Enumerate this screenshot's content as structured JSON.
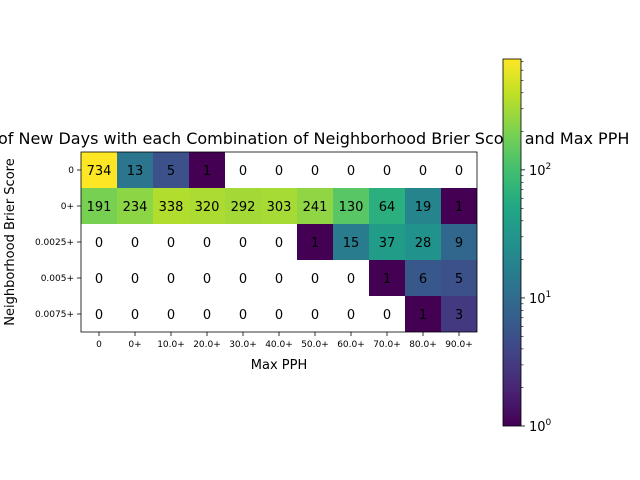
{
  "chart_data": {
    "type": "heatmap",
    "title": "Number of New Days with each Combination of Neighborhood Brier Score and Max PPH",
    "xlabel": "Max PPH",
    "ylabel": "Neighborhood Brier Score",
    "x_categories": [
      "0",
      "0+",
      "10.0+",
      "20.0+",
      "30.0+",
      "40.0+",
      "50.0+",
      "60.0+",
      "70.0+",
      "80.0+",
      "90.0+"
    ],
    "y_categories": [
      "0",
      "0+",
      "0.0025+",
      "0.005+",
      "0.0075+"
    ],
    "values": [
      [
        734,
        13,
        5,
        1,
        0,
        0,
        0,
        0,
        0,
        0,
        0
      ],
      [
        191,
        234,
        338,
        320,
        292,
        303,
        241,
        130,
        64,
        19,
        1
      ],
      [
        0,
        0,
        0,
        0,
        0,
        0,
        1,
        15,
        37,
        28,
        9
      ],
      [
        0,
        0,
        0,
        0,
        0,
        0,
        0,
        0,
        1,
        6,
        5
      ],
      [
        0,
        0,
        0,
        0,
        0,
        0,
        0,
        0,
        0,
        1,
        3
      ]
    ],
    "zero_cells_color": "#ffffff",
    "colormap": "viridis",
    "color_scale": "log",
    "colorbar": {
      "min": 1,
      "max": 734,
      "ticks": [
        {
          "value": 1,
          "base": "10",
          "exp": "0"
        },
        {
          "value": 10,
          "base": "10",
          "exp": "1"
        },
        {
          "value": 100,
          "base": "10",
          "exp": "2"
        }
      ]
    }
  }
}
